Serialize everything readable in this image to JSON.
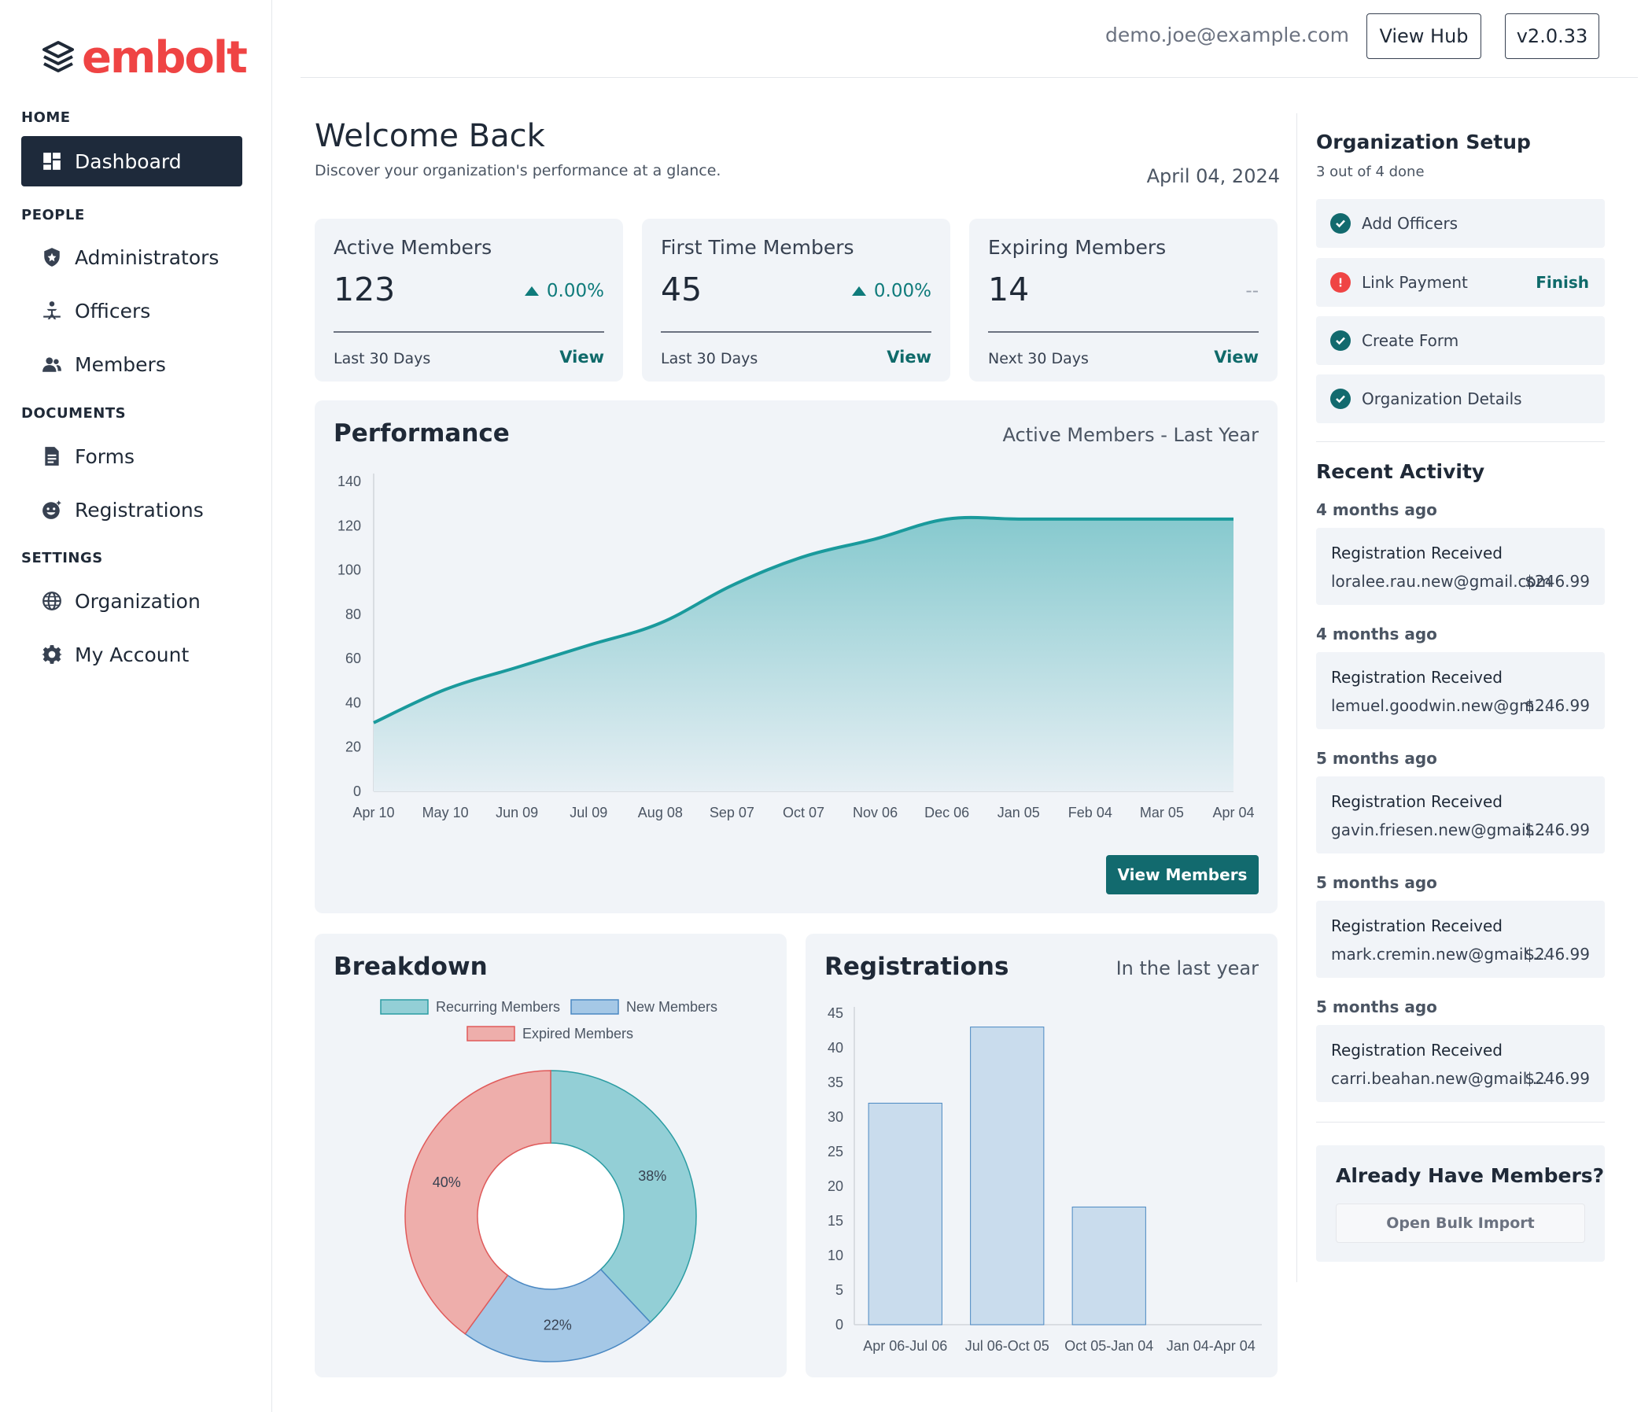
{
  "brand": {
    "name": "embolt",
    "color": "#ef4444"
  },
  "sidebar": {
    "sections": [
      {
        "label": "HOME"
      },
      {
        "label": "PEOPLE"
      },
      {
        "label": "DOCUMENTS"
      },
      {
        "label": "SETTINGS"
      }
    ],
    "items": [
      {
        "label": "Dashboard",
        "icon": "dashboard-icon",
        "active": true
      },
      {
        "label": "Administrators",
        "icon": "shield-icon"
      },
      {
        "label": "Officers",
        "icon": "officer-icon"
      },
      {
        "label": "Members",
        "icon": "users-icon"
      },
      {
        "label": "Forms",
        "icon": "document-icon"
      },
      {
        "label": "Registrations",
        "icon": "registration-icon"
      },
      {
        "label": "Organization",
        "icon": "globe-icon"
      },
      {
        "label": "My Account",
        "icon": "gear-icon"
      }
    ]
  },
  "header": {
    "email": "demo.joe@example.com",
    "hub_label": "View Hub",
    "version": "v2.0.33"
  },
  "welcome": {
    "title": "Welcome Back",
    "subtitle": "Discover your organization's performance at a glance.",
    "date": "April 04, 2024"
  },
  "stats": [
    {
      "label": "Active Members",
      "value": "123",
      "change": "0.00%",
      "period": "Last 30 Days",
      "link": "View"
    },
    {
      "label": "First Time Members",
      "value": "45",
      "change": "0.00%",
      "period": "Last 30 Days",
      "link": "View"
    },
    {
      "label": "Expiring Members",
      "value": "14",
      "change": "--",
      "period": "Next 30 Days",
      "link": "View"
    }
  ],
  "performance": {
    "title": "Performance",
    "subtitle": "Active Members - Last Year",
    "button": "View Members"
  },
  "breakdown": {
    "title": "Breakdown"
  },
  "registrations": {
    "title": "Registrations",
    "subtitle": "In the last year"
  },
  "chart_data": [
    {
      "type": "area",
      "title": "Performance",
      "subtitle": "Active Members - Last Year",
      "x": [
        "Apr 10",
        "May 10",
        "Jun 09",
        "Jul 09",
        "Aug 08",
        "Sep 07",
        "Oct 07",
        "Nov 06",
        "Dec 06",
        "Jan 05",
        "Feb 04",
        "Mar 05",
        "Apr 04"
      ],
      "series": [
        {
          "values": [
            31,
            46,
            56,
            66,
            76,
            93,
            106,
            114,
            123,
            123,
            123,
            123,
            123
          ]
        }
      ],
      "yticks": [
        0,
        20,
        40,
        60,
        80,
        100,
        120,
        140
      ],
      "ylim": [
        0,
        140
      ],
      "color": "#1a9a9c"
    },
    {
      "type": "pie",
      "title": "Breakdown",
      "legend": [
        "Recurring Members",
        "New Members",
        "Expired Members"
      ],
      "values": [
        38,
        22,
        40
      ],
      "labels": [
        "38%",
        "22%",
        "40%"
      ],
      "colors": [
        "#93cfd6",
        "#a5c8e6",
        "#eeaeab"
      ],
      "borders": [
        "#2a9ca2",
        "#4a88c2",
        "#e05a5a"
      ]
    },
    {
      "type": "bar",
      "title": "Registrations",
      "subtitle": "In the last year",
      "categories": [
        "Apr 06-Jul 06",
        "Jul 06-Oct 05",
        "Oct 05-Jan 04",
        "Jan 04-Apr 04"
      ],
      "values": [
        32,
        43,
        17,
        0
      ],
      "yticks": [
        0,
        5,
        10,
        15,
        20,
        25,
        30,
        35,
        40,
        45
      ],
      "ylim": [
        0,
        45
      ],
      "color": "#c9dced"
    }
  ],
  "setup": {
    "title": "Organization Setup",
    "progress": "3 out of 4 done",
    "items": [
      {
        "label": "Add Officers",
        "done": true
      },
      {
        "label": "Link Payment",
        "done": false,
        "action": "Finish"
      },
      {
        "label": "Create Form",
        "done": true
      },
      {
        "label": "Organization Details",
        "done": true
      }
    ]
  },
  "activity": {
    "title": "Recent Activity",
    "items": [
      {
        "time": "4 months ago",
        "title": "Registration Received",
        "email": "loralee.rau.new@gmail.com",
        "amount": "$246.99"
      },
      {
        "time": "4 months ago",
        "title": "Registration Received",
        "email": "lemuel.goodwin.new@gm...",
        "amount": "$246.99"
      },
      {
        "time": "5 months ago",
        "title": "Registration Received",
        "email": "gavin.friesen.new@gmail....",
        "amount": "$246.99"
      },
      {
        "time": "5 months ago",
        "title": "Registration Received",
        "email": "mark.cremin.new@gmail....",
        "amount": "$246.99"
      },
      {
        "time": "5 months ago",
        "title": "Registration Received",
        "email": "carri.beahan.new@gmail....",
        "amount": "$246.99"
      }
    ]
  },
  "import": {
    "title": "Already Have Members?",
    "button": "Open Bulk Import"
  }
}
